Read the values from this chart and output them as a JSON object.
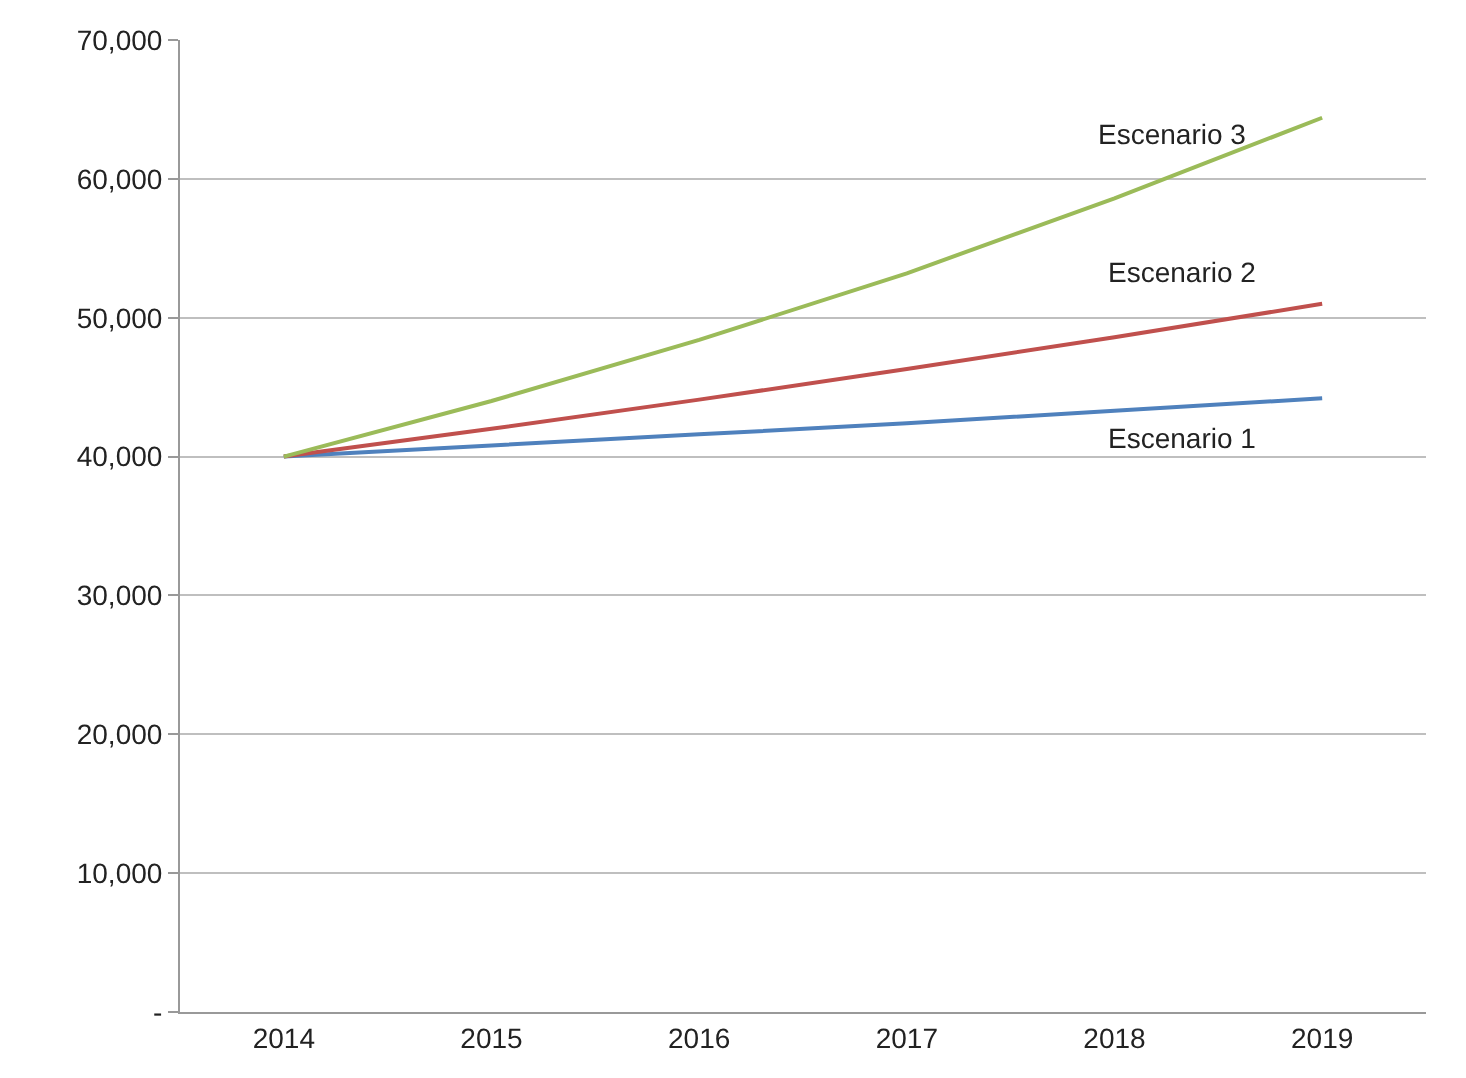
{
  "chart_data": {
    "type": "line",
    "categories": [
      "2014",
      "2015",
      "2016",
      "2017",
      "2018",
      "2019"
    ],
    "series": [
      {
        "name": "Escenario 1",
        "color": "#4f81bd",
        "values": [
          40000,
          40800,
          41600,
          42400,
          43300,
          44200
        ]
      },
      {
        "name": "Escenario 2",
        "color": "#c0504d",
        "values": [
          40000,
          42000,
          44100,
          46300,
          48600,
          51000
        ]
      },
      {
        "name": "Escenario 3",
        "color": "#9bbb59",
        "values": [
          40000,
          44000,
          48400,
          53200,
          58600,
          64400
        ]
      }
    ],
    "ylim": [
      0,
      70000
    ],
    "yticks": [
      {
        "value": 0,
        "label": "-"
      },
      {
        "value": 10000,
        "label": "10,000"
      },
      {
        "value": 20000,
        "label": "20,000"
      },
      {
        "value": 30000,
        "label": "30,000"
      },
      {
        "value": 40000,
        "label": "40,000"
      },
      {
        "value": 50000,
        "label": "50,000"
      },
      {
        "value": 60000,
        "label": "60,000"
      },
      {
        "value": 70000,
        "label": "70,000"
      }
    ],
    "grid": "y",
    "legend": false,
    "marker": "none",
    "line_style": "solid"
  }
}
